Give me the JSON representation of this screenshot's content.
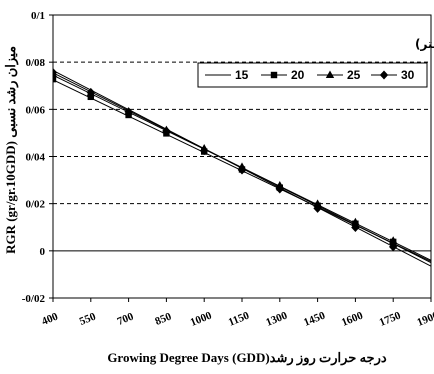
{
  "chart_data": {
    "type": "line",
    "title": "",
    "xlabel": "Growing Degree Days (GDD)درجه حرارت روز رشد",
    "ylabel": "RGR (gr/gr.10GDD) میزان رشد نسبی",
    "x": [
      400,
      550,
      700,
      850,
      1000,
      1150,
      1300,
      1450,
      1600,
      1750,
      1900
    ],
    "xlim": [
      400,
      1900
    ],
    "ylim": [
      -0.02,
      0.1
    ],
    "x_tick_labels": [
      "400",
      "550",
      "700",
      "850",
      "1000",
      "1150",
      "1300",
      "1450",
      "1600",
      "1750",
      "1900"
    ],
    "y_tick_values": [
      0.1,
      0.08,
      0.06,
      0.04,
      0.02,
      0,
      -0.02
    ],
    "y_tick_labels": [
      "0/1",
      "0/08",
      "0/06",
      "0/04",
      "0/02",
      "0",
      "-0/02"
    ],
    "grid": {
      "horizontal_dashed": [
        0.02,
        0.04,
        0.06,
        0.08
      ],
      "zero_line": 0
    },
    "legend": {
      "title": "فاصله بوته (سانتی متر)",
      "placement": "top-right"
    },
    "marker_x": [
      400,
      550,
      700,
      850,
      1000,
      1150,
      1300,
      1450,
      1600,
      1750
    ],
    "series": [
      {
        "name": "15",
        "marker": "none",
        "line_x": [
          400,
          1900
        ],
        "line_y": [
          0.0765,
          -0.0065
        ],
        "marker_y": []
      },
      {
        "name": "20",
        "marker": "square",
        "line_x": [
          400,
          1900
        ],
        "line_y": [
          0.0725,
          -0.0045
        ],
        "marker_y": [
          0.0728,
          0.0653,
          0.0576,
          0.0498,
          0.0421,
          0.0345,
          0.0268,
          0.0191,
          0.0115,
          0.0038
        ]
      },
      {
        "name": "25",
        "marker": "triangle",
        "line_x": [
          400,
          1900
        ],
        "line_y": [
          0.0745,
          -0.004
        ],
        "marker_y": [
          0.075,
          0.0668,
          0.059,
          0.0512,
          0.0434,
          0.0356,
          0.0277,
          0.0199,
          0.0121,
          0.0043
        ]
      },
      {
        "name": "30",
        "marker": "diamond",
        "line_x": [
          400,
          1900
        ],
        "line_y": [
          0.0755,
          -0.005
        ],
        "marker_y": [
          0.0756,
          0.0672,
          0.059,
          0.0508,
          0.0425,
          0.0343,
          0.0262,
          0.018,
          0.0099,
          0.0017
        ]
      }
    ]
  }
}
